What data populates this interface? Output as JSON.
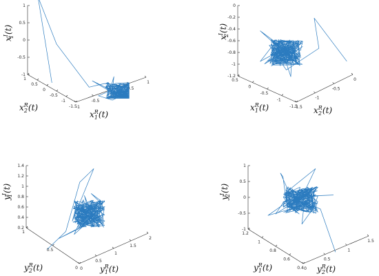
{
  "chart_data": [
    {
      "type": "line",
      "title": "",
      "zlabel": "x1_I(t)",
      "xlabel_left": "x2_R(t)",
      "xlabel_right": "x1_R(t)",
      "series_color": "#2b7bbf",
      "ticks": {
        "z": [
          "1",
          "0.5",
          "0",
          "-0.5",
          "-1"
        ],
        "left": [
          "1",
          "0.5",
          "0",
          "-0.5",
          "-1",
          "-1.5"
        ],
        "right": [
          "-1",
          "-0.5",
          "0",
          "0.5",
          "1"
        ]
      },
      "trajectory": {
        "start": [
          0.15,
          0.8
        ],
        "walk": [
          [
            0.0,
            -0.2
          ],
          [
            0.2,
            0.35
          ],
          [
            0.55,
            0.85
          ],
          [
            0.65,
            0.95
          ],
          [
            0.8,
            1.0
          ],
          [
            0.9,
            0.95
          ]
        ],
        "seed": 11,
        "samples": 210
      }
    },
    {
      "type": "line",
      "title": "",
      "zlabel": "x2_I(t)",
      "xlabel_left": "x1_R(t)",
      "xlabel_right": "x2_R(t)",
      "series_color": "#2b7bbf",
      "ticks": {
        "z": [
          "0",
          "-0.2",
          "-0.4",
          "-0.6",
          "-0.8",
          "-1",
          "-1.2"
        ],
        "left": [
          "0.5",
          "0",
          "-0.5",
          "-1",
          "-1.5"
        ],
        "right": [
          "-1.5",
          "-1",
          "-0.5",
          "0"
        ]
      },
      "trajectory": {
        "start": [
          0.95,
          0.55
        ],
        "walk": [
          [
            0.6,
            0.05
          ],
          [
            0.65,
            0.4
          ],
          [
            0.3,
            0.65
          ],
          [
            0.1,
            0.55
          ],
          [
            0.3,
            0.45
          ]
        ],
        "seed": 23,
        "samples": 210
      }
    },
    {
      "type": "line",
      "title": "",
      "zlabel": "y1_I(t)",
      "xlabel_left": "y2_R(t)",
      "xlabel_right": "y1_R(t)",
      "series_color": "#2b7bbf",
      "ticks": {
        "z": [
          "1.4",
          "1.2",
          "1",
          "0.8",
          "0.6",
          "0.4",
          "0.2"
        ],
        "left": [
          "1",
          "0.5",
          "0"
        ],
        "right": [
          "0",
          "0.5",
          "1",
          "1.5",
          "2"
        ]
      },
      "trajectory": {
        "start": [
          0.1,
          0.95
        ],
        "walk": [
          [
            0.3,
            0.75
          ],
          [
            0.45,
            0.2
          ],
          [
            0.6,
            0.05
          ],
          [
            0.5,
            0.35
          ],
          [
            0.55,
            0.55
          ]
        ],
        "seed": 37,
        "samples": 210
      }
    },
    {
      "type": "line",
      "title": "",
      "zlabel": "y2_I(t)",
      "xlabel_left": "y1_R(t)",
      "xlabel_right": "y2_R(t)",
      "series_color": "#2b7bbf",
      "ticks": {
        "z": [
          "1",
          "0.5",
          "0",
          "-0.5",
          "-1"
        ],
        "left": [
          "1.2",
          "1",
          "0.8",
          "0.6",
          "0.4"
        ],
        "right": [
          "0",
          "0.5",
          "1",
          "1.5"
        ]
      },
      "trajectory": {
        "start": [
          0.75,
          0.98
        ],
        "walk": [
          [
            0.6,
            0.5
          ],
          [
            0.3,
            0.35
          ],
          [
            0.2,
            0.1
          ],
          [
            0.55,
            0.05
          ],
          [
            0.4,
            0.4
          ]
        ],
        "seed": 53,
        "samples": 210
      }
    }
  ]
}
